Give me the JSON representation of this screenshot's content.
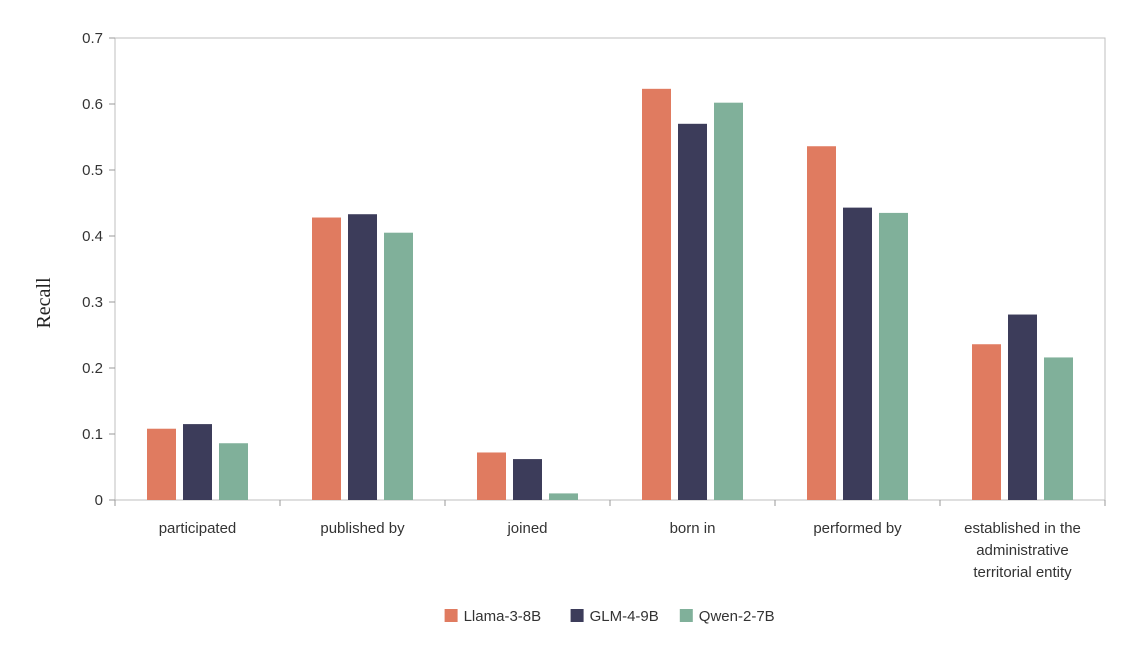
{
  "chart_data": {
    "type": "bar",
    "categories": [
      "participated",
      "published by",
      "joined",
      "born in",
      "performed by",
      "established in the administrative territorial entity"
    ],
    "category_label_lines": [
      [
        "participated"
      ],
      [
        "published by"
      ],
      [
        "joined"
      ],
      [
        "born in"
      ],
      [
        "performed by"
      ],
      [
        "established in the",
        "administrative",
        "territorial entity"
      ]
    ],
    "series": [
      {
        "name": "Llama-3-8B",
        "color": "#E07B60",
        "values": [
          0.108,
          0.428,
          0.072,
          0.623,
          0.536,
          0.236
        ]
      },
      {
        "name": "GLM-4-9B",
        "color": "#3C3C5A",
        "values": [
          0.115,
          0.433,
          0.062,
          0.57,
          0.443,
          0.281
        ]
      },
      {
        "name": "Qwen-2-7B",
        "color": "#80B09A",
        "values": [
          0.086,
          0.405,
          0.01,
          0.602,
          0.435,
          0.216
        ]
      }
    ],
    "ylabel": "Recall",
    "xlabel": "",
    "ylim": [
      0,
      0.7
    ],
    "yticks": [
      "0",
      "0.1",
      "0.2",
      "0.3",
      "0.4",
      "0.5",
      "0.6",
      "0.7"
    ],
    "grid": false,
    "legend_position": "bottom-center"
  }
}
